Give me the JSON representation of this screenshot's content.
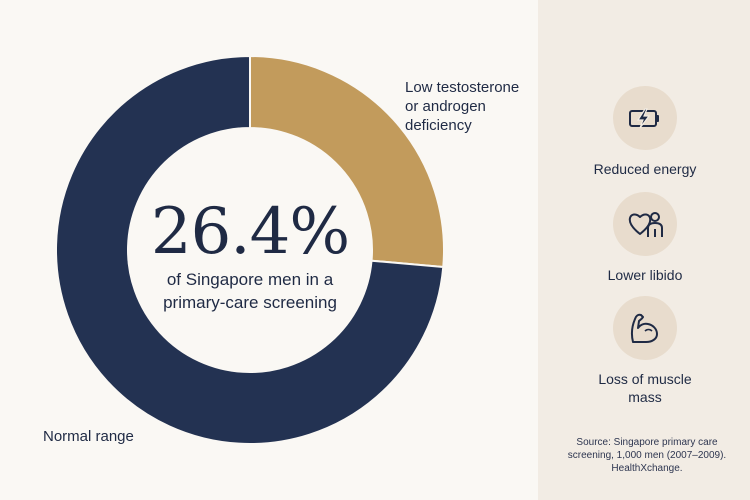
{
  "chart_data": {
    "type": "pie",
    "donut": true,
    "slices": [
      {
        "label": "Low testosterone or androgen deficiency",
        "value": 26.4,
        "color": "#c29b5c"
      },
      {
        "label": "Normal range",
        "value": 73.6,
        "color": "#233252"
      }
    ]
  },
  "labels": {
    "low_line1": "Low testosterone",
    "low_line2": "or androgen",
    "low_line3": "deficiency",
    "normal": "Normal range"
  },
  "center": {
    "value": "26.4%",
    "desc_line1": "of Singapore men in a",
    "desc_line2": "primary-care screening"
  },
  "symptoms": [
    {
      "icon": "battery-lightning-icon",
      "label": "Reduced energy"
    },
    {
      "icon": "heart-person-icon",
      "label": "Lower libido"
    },
    {
      "icon": "flexed-arm-icon",
      "label_line1": "Loss of muscle",
      "label_line2": "mass"
    }
  ],
  "source": {
    "line1": "Source: Singapore primary care",
    "line2": "screening, 1,000 men (2007–2009).",
    "line3": "HealthXchange."
  },
  "colors": {
    "navy": "#233252",
    "gold": "#c29b5c",
    "background": "#faf8f4",
    "panel": "#f2ece4",
    "icon_circle": "#e8dccd"
  }
}
